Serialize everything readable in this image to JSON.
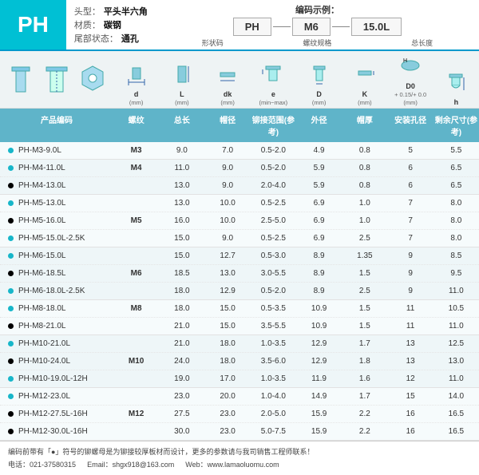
{
  "badge": "PH",
  "specs": {
    "headTypeLabel": "头型：",
    "headType": "平头半六角",
    "materialLabel": "材质：",
    "material": "碳钢",
    "tailLabel": "尾部状态：",
    "tail": "通孔"
  },
  "codeExample": {
    "title": "编码示例：",
    "parts": [
      "PH",
      "M6",
      "15.0L"
    ],
    "subs": [
      "形状码",
      "螺纹规格",
      "总长度"
    ]
  },
  "diagLabels": [
    {
      "main": "d",
      "sub": "(mm)"
    },
    {
      "main": "L",
      "sub": "(mm)"
    },
    {
      "main": "dk",
      "sub": "(mm)"
    },
    {
      "main": "e",
      "sub": "(min~max)"
    },
    {
      "main": "D",
      "sub": "(mm)"
    },
    {
      "main": "K",
      "sub": "(mm)"
    },
    {
      "main": "D0",
      "sub": "+ 0.15/+ 0.0 (mm)"
    },
    {
      "main": "h",
      "sub": ""
    }
  ],
  "headers": {
    "code": "产品编码",
    "cols": [
      "螺纹",
      "总长",
      "帽径",
      "铆接范围(参考)",
      "外径",
      "帽厚",
      "安装孔径",
      "剩余尺寸(参考)"
    ]
  },
  "groups": [
    {
      "thread": "M3",
      "rows": [
        {
          "dot": "teal",
          "code": "PH-M3-9.0L",
          "v": [
            "",
            "9.0",
            "7.0",
            "0.5-2.0",
            "4.9",
            "0.8",
            "5",
            "5.5"
          ]
        }
      ]
    },
    {
      "thread": "M4",
      "rows": [
        {
          "dot": "teal",
          "code": "PH-M4-11.0L",
          "v": [
            "",
            "11.0",
            "9.0",
            "0.5-2.0",
            "5.9",
            "0.8",
            "6",
            "6.5"
          ]
        },
        {
          "dot": "black",
          "code": "PH-M4-13.0L",
          "v": [
            "",
            "13.0",
            "9.0",
            "2.0-4.0",
            "5.9",
            "0.8",
            "6",
            "6.5"
          ]
        }
      ]
    },
    {
      "thread": "M5",
      "rows": [
        {
          "dot": "teal",
          "code": "PH-M5-13.0L",
          "v": [
            "",
            "13.0",
            "10.0",
            "0.5-2.5",
            "6.9",
            "1.0",
            "7",
            "8.0"
          ]
        },
        {
          "dot": "black",
          "code": "PH-M5-16.0L",
          "v": [
            "",
            "16.0",
            "10.0",
            "2.5-5.0",
            "6.9",
            "1.0",
            "7",
            "8.0"
          ]
        },
        {
          "dot": "teal",
          "code": "PH-M5-15.0L-2.5K",
          "v": [
            "",
            "15.0",
            "9.0",
            "0.5-2.5",
            "6.9",
            "2.5",
            "7",
            "8.0"
          ]
        }
      ]
    },
    {
      "thread": "M6",
      "rows": [
        {
          "dot": "teal",
          "code": "PH-M6-15.0L",
          "v": [
            "",
            "15.0",
            "12.7",
            "0.5-3.0",
            "8.9",
            "1.35",
            "9",
            "8.5"
          ]
        },
        {
          "dot": "black",
          "code": "PH-M6-18.5L",
          "v": [
            "",
            "18.5",
            "13.0",
            "3.0-5.5",
            "8.9",
            "1.5",
            "9",
            "9.5"
          ]
        },
        {
          "dot": "teal",
          "code": "PH-M6-18.0L-2.5K",
          "v": [
            "",
            "18.0",
            "12.9",
            "0.5-2.0",
            "8.9",
            "2.5",
            "9",
            "11.0"
          ]
        }
      ]
    },
    {
      "thread": "M8",
      "rows": [
        {
          "dot": "teal",
          "code": "PH-M8-18.0L",
          "v": [
            "",
            "18.0",
            "15.0",
            "0.5-3.5",
            "10.9",
            "1.5",
            "11",
            "10.5"
          ]
        },
        {
          "dot": "black",
          "code": "PH-M8-21.0L",
          "v": [
            "",
            "21.0",
            "15.0",
            "3.5-5.5",
            "10.9",
            "1.5",
            "11",
            "11.0"
          ]
        }
      ]
    },
    {
      "thread": "M10",
      "rows": [
        {
          "dot": "teal",
          "code": "PH-M10-21.0L",
          "v": [
            "",
            "21.0",
            "18.0",
            "1.0-3.5",
            "12.9",
            "1.7",
            "13",
            "12.5"
          ]
        },
        {
          "dot": "black",
          "code": "PH-M10-24.0L",
          "v": [
            "",
            "24.0",
            "18.0",
            "3.5-6.0",
            "12.9",
            "1.8",
            "13",
            "13.0"
          ]
        },
        {
          "dot": "teal",
          "code": "PH-M10-19.0L-12H",
          "v": [
            "",
            "19.0",
            "17.0",
            "1.0-3.5",
            "11.9",
            "1.6",
            "12",
            "11.0"
          ]
        }
      ]
    },
    {
      "thread": "M12",
      "rows": [
        {
          "dot": "teal",
          "code": "PH-M12-23.0L",
          "v": [
            "",
            "23.0",
            "20.0",
            "1.0-4.0",
            "14.9",
            "1.7",
            "15",
            "14.0"
          ]
        },
        {
          "dot": "black",
          "code": "PH-M12-27.5L-16H",
          "v": [
            "",
            "27.5",
            "23.0",
            "2.0-5.0",
            "15.9",
            "2.2",
            "16",
            "16.5"
          ]
        },
        {
          "dot": "black",
          "code": "PH-M12-30.0L-16H",
          "v": [
            "",
            "30.0",
            "23.0",
            "5.0-7.5",
            "15.9",
            "2.2",
            "16",
            "16.5"
          ]
        }
      ]
    }
  ],
  "footer": {
    "note": "编码前带有「●」符号的铆螺母是为铆接较厚板材而设计，更多的参数请与我司销售工程师联系！",
    "tel": "电话：021-37580315",
    "email": "Email：shgx918@163.com",
    "web": "Web：www.lamaoluomu.com"
  },
  "colors": {
    "teal": "#17b6c9",
    "hdr": "#5fb4c9"
  }
}
